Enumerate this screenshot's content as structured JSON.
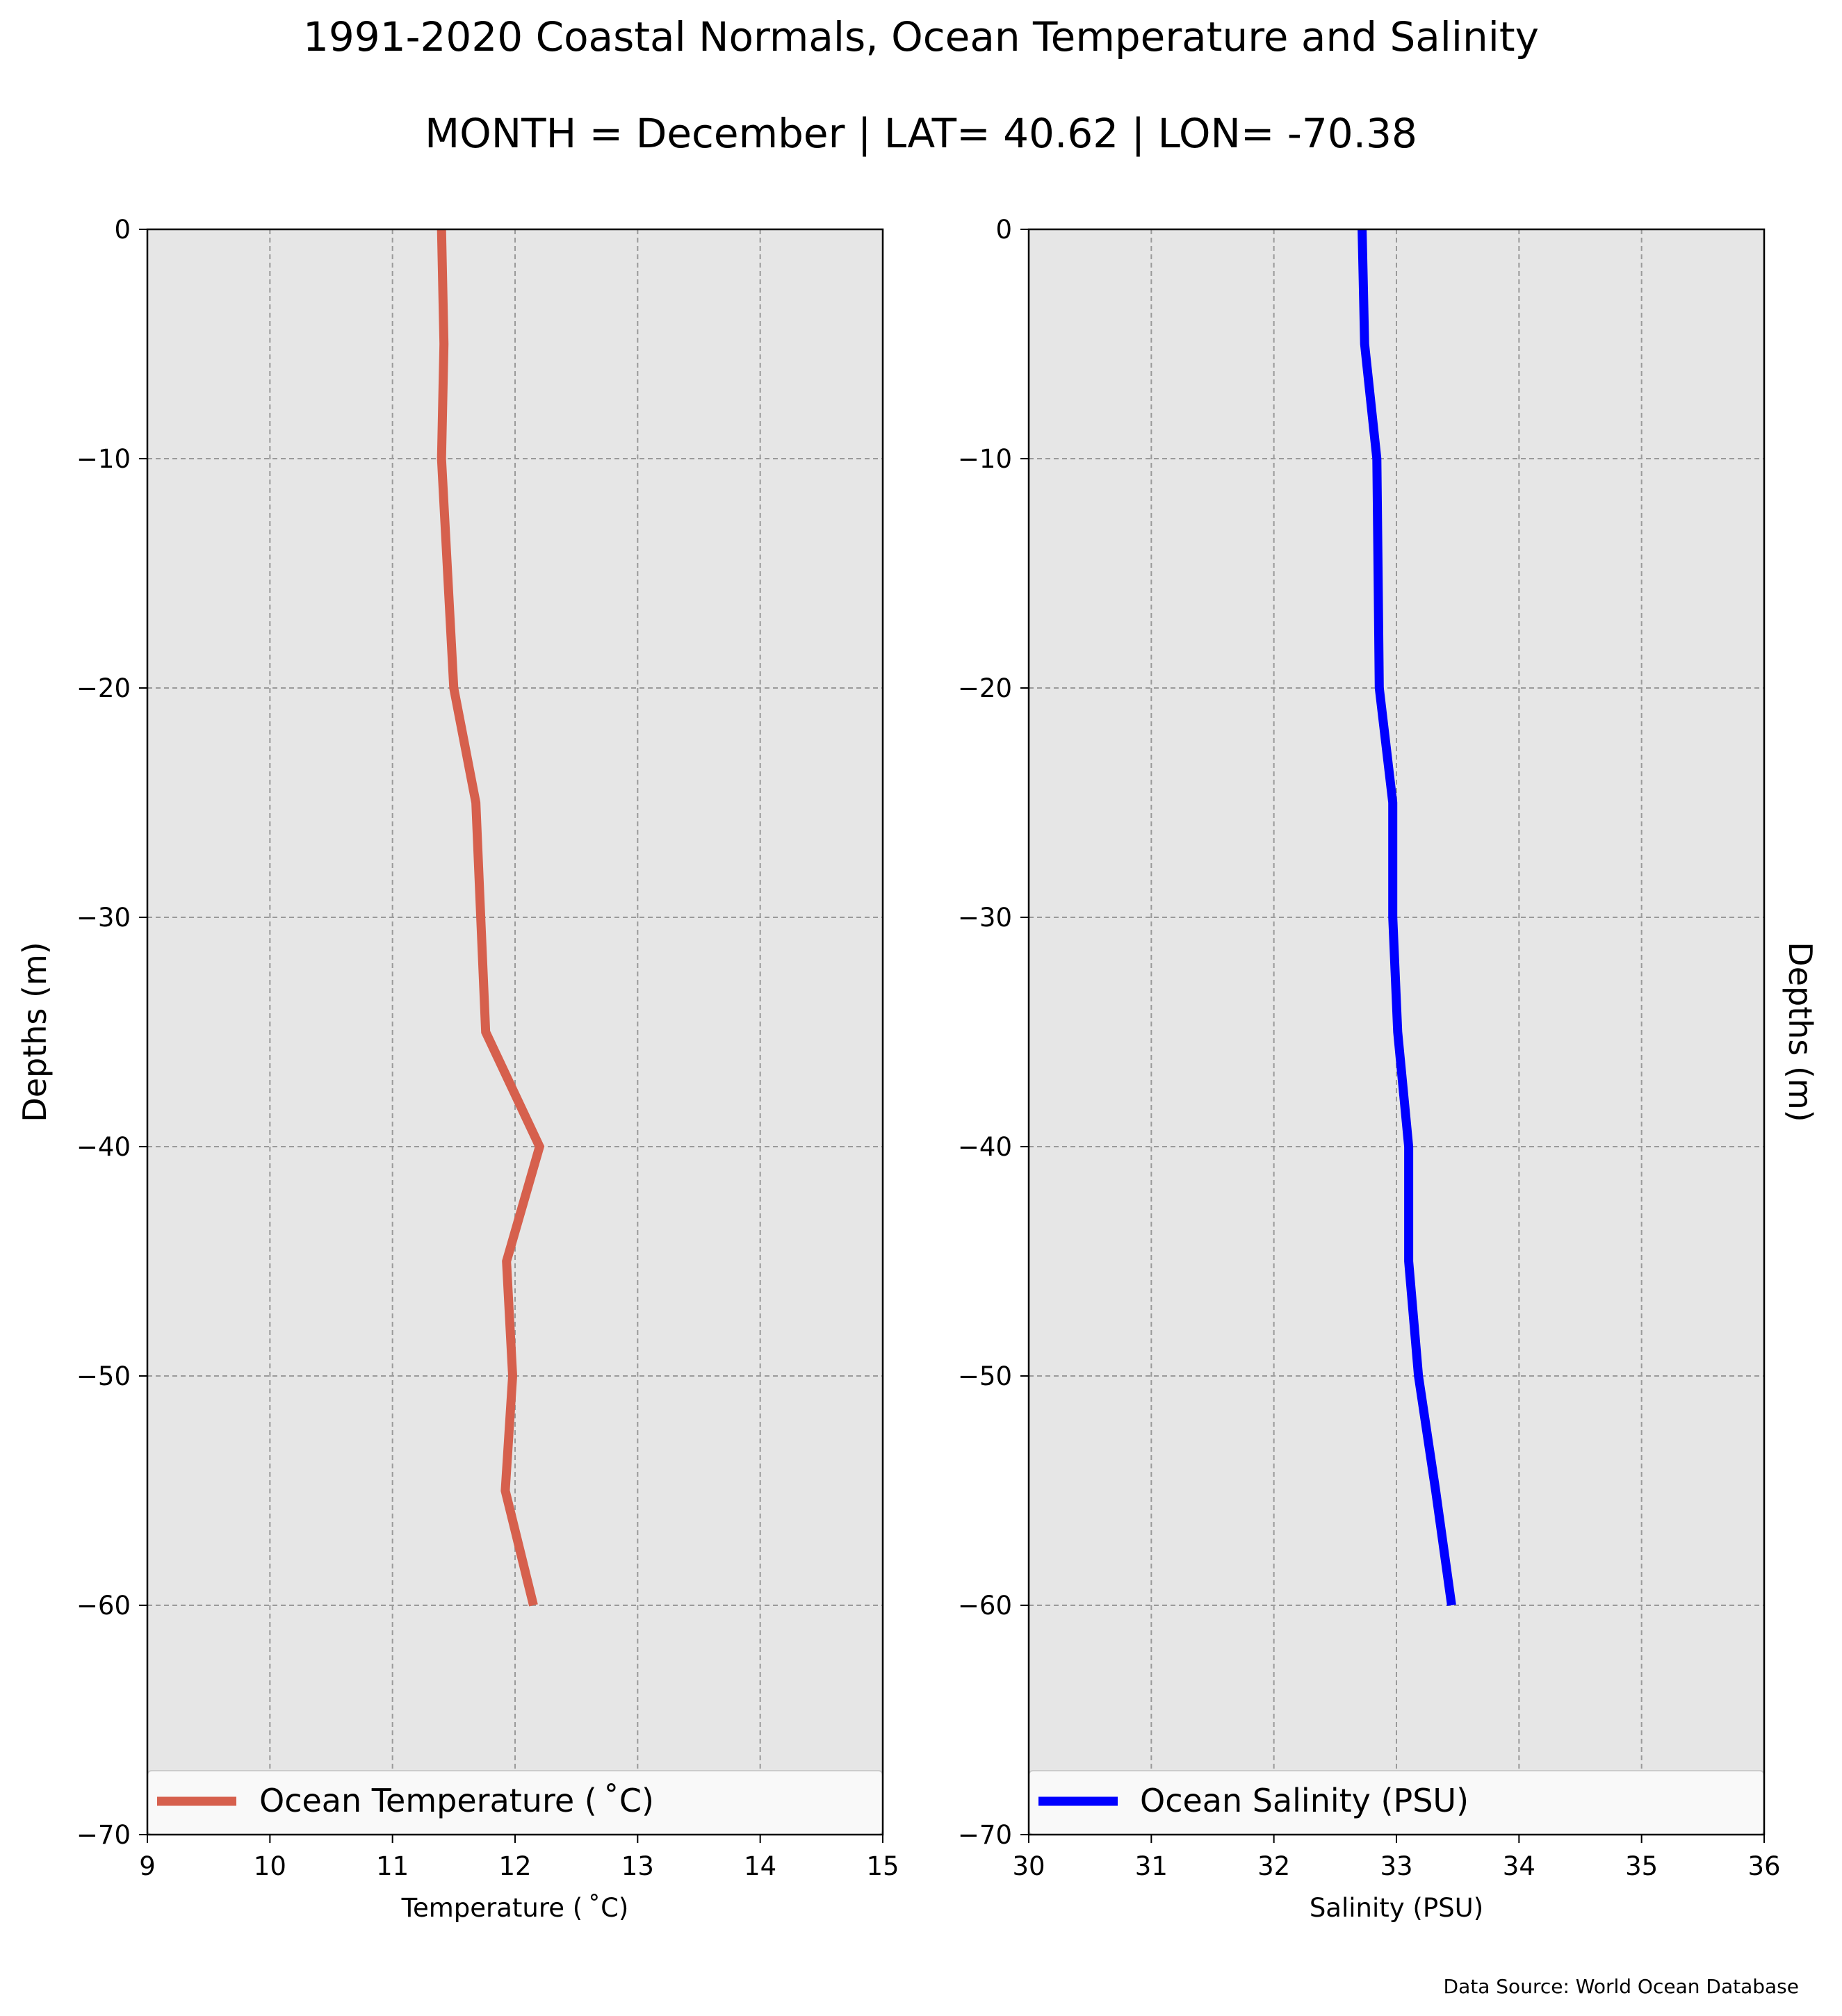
{
  "figure": {
    "title_line1": "1991-2020 Coastal Normals, Ocean Temperature and Salinity",
    "title_line2": "MONTH = December | LAT= 40.62 | LON= -70.38",
    "source": "Data Source: World Ocean Database"
  },
  "chart_data": [
    {
      "type": "line",
      "xlabel": "Temperature ($^\\circ$C)",
      "xlabel_display": "Temperature ( ˚C)",
      "ylabel": "Depths (m)",
      "xlim": [
        9,
        15
      ],
      "ylim": [
        -70,
        0
      ],
      "xticks": [
        9,
        10,
        11,
        12,
        13,
        14,
        15
      ],
      "yticks": [
        0,
        -10,
        -20,
        -30,
        -40,
        -50,
        -60,
        -70
      ],
      "ytick_labels": [
        "0",
        "−10",
        "−20",
        "−30",
        "−40",
        "−50",
        "−60",
        "−70"
      ],
      "grid": true,
      "ylabel_side": "left",
      "legend_placement": "lower center",
      "series": [
        {
          "name": "Ocean Temperature ($^\\circ$C)",
          "display_name": "Ocean Temperature ( ˚C)",
          "color": "#d6604d",
          "x": [
            11.4,
            11.42,
            11.4,
            11.45,
            11.5,
            11.68,
            11.72,
            11.76,
            12.2,
            11.93,
            11.98,
            11.92,
            12.15
          ],
          "y": [
            0,
            -5,
            -10,
            -15,
            -20,
            -25,
            -30,
            -35,
            -40,
            -45,
            -50,
            -55,
            -60
          ]
        }
      ]
    },
    {
      "type": "line",
      "xlabel": "Salinity (PSU)",
      "ylabel": "Depths (m)",
      "xlim": [
        30,
        36
      ],
      "ylim": [
        -70,
        0
      ],
      "xticks": [
        30,
        31,
        32,
        33,
        34,
        35,
        36
      ],
      "yticks": [
        0,
        -10,
        -20,
        -30,
        -40,
        -50,
        -60,
        -70
      ],
      "ytick_labels": [
        "0",
        "−10",
        "−20",
        "−30",
        "−40",
        "−50",
        "−60",
        "−70"
      ],
      "grid": true,
      "ylabel_side": "right",
      "legend_placement": "lower center",
      "series": [
        {
          "name": "Ocean Salinity (PSU)",
          "color": "#0000ff",
          "x": [
            32.72,
            32.74,
            32.84,
            32.85,
            32.86,
            32.97,
            32.97,
            33.01,
            33.1,
            33.1,
            33.18,
            33.32,
            33.45
          ],
          "y": [
            0,
            -5,
            -10,
            -15,
            -20,
            -25,
            -30,
            -35,
            -40,
            -45,
            -50,
            -55,
            -60
          ]
        }
      ]
    }
  ]
}
